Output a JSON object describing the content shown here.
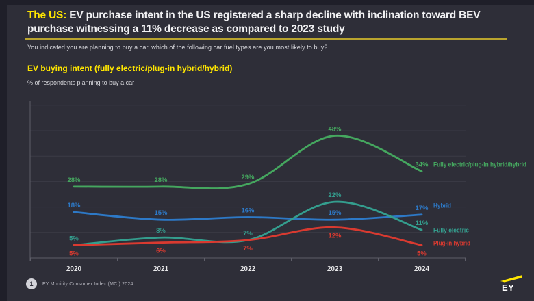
{
  "header": {
    "title_highlight": "The US:",
    "title_rest_line1": "EV purchase intent in the US registered a sharp decline with inclination toward BEV",
    "title_line2": "purchase witnessing a 11% decrease as compared to 2023 study",
    "question": "You indicated you are planning to buy a car, which of the following car fuel types are you most likely to buy?"
  },
  "chart": {
    "title": "EV buying intent (fully electric/plug-in hybrid/hybrid)",
    "subtitle": "% of respondents planning to buy a car"
  },
  "chart_data": {
    "type": "line",
    "title": "EV buying intent (fully electric/plug-in hybrid/hybrid)",
    "xlabel": "",
    "ylabel": "% of respondents planning to buy a car",
    "categories": [
      "2020",
      "2021",
      "2022",
      "2023",
      "2024"
    ],
    "series": [
      {
        "name": "Fully electric/plug-in hybrid/hybrid",
        "values": [
          28,
          28,
          29,
          48,
          34
        ],
        "color": "#45a75f",
        "label_side": "above"
      },
      {
        "name": "Hybrid",
        "values": [
          18,
          15,
          16,
          15,
          17
        ],
        "color": "#2d79c7",
        "label_side": "above"
      },
      {
        "name": "Fully electric",
        "values": [
          5,
          8,
          7,
          22,
          11
        ],
        "color": "#349e8e",
        "label_side": "above"
      },
      {
        "name": "Plug-in hybrid",
        "values": [
          5,
          6,
          7,
          12,
          5
        ],
        "color": "#d93a30",
        "label_side": "below"
      }
    ],
    "ylim": [
      0,
      60
    ],
    "grid": "horizontal gridlines every 10%",
    "legend_position": "right of line endpoints",
    "data_labels": "percent value at every point"
  },
  "footer": {
    "page_number": "1",
    "source": "EY Mobility Consumer Index (MCI) 2024",
    "logo": "EY"
  },
  "colors": {
    "canvas": "#1f1f29",
    "slide_background": "#2e2e38",
    "accent_yellow": "#ffe600",
    "divider_gold": "#b9a42e",
    "axis": "#5e5e69",
    "gridline": "#3b3b46",
    "x_label": "#e8e8ea",
    "text_primary": "#f2f2f4",
    "text_secondary": "#d9d9de"
  }
}
